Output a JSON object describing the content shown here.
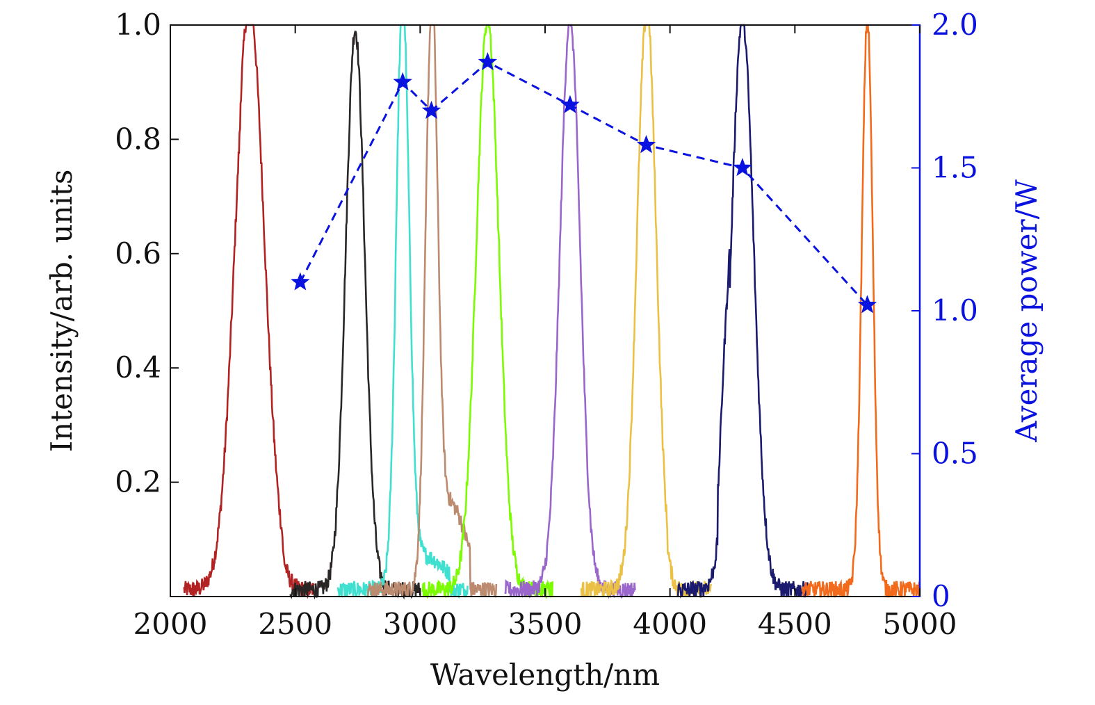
{
  "chart_data": {
    "type": "line",
    "title": "",
    "xlabel": "Wavelength/nm",
    "ylabel": "Intensity/arb. units",
    "y2label": "Average power/W",
    "xlim": [
      2000,
      5000
    ],
    "ylim": [
      0,
      1.0
    ],
    "y2lim": [
      0,
      2.0
    ],
    "x_ticks": [
      "2000",
      "2500",
      "3000",
      "3500",
      "4000",
      "4500",
      "5000"
    ],
    "y_ticks": [
      "0.2",
      "0.4",
      "0.6",
      "0.8",
      "1.0"
    ],
    "y2_ticks": [
      "0",
      "0.5",
      "1.0",
      "1.5",
      "2.0"
    ],
    "grid": false,
    "legend": "none",
    "spectra": [
      {
        "color": "#b22222",
        "center": 2315,
        "width": 58,
        "peak": 0.98,
        "tail": 0.06,
        "tail_start": 2280,
        "tail_end": 2450
      },
      {
        "color": "#2b2626",
        "center": 2740,
        "width": 38,
        "peak": 0.98,
        "tail": 0.0,
        "tail_start": 2660,
        "tail_end": 2830
      },
      {
        "color": "#40e0d0",
        "center": 2930,
        "width": 26,
        "peak": 1.0,
        "tail": 0.06,
        "tail_start": 2900,
        "tail_end": 3120
      },
      {
        "color": "#bc8a6e",
        "center": 3045,
        "width": 24,
        "peak": 1.0,
        "tail": 0.15,
        "tail_start": 3040,
        "tail_end": 3200
      },
      {
        "color": "#7cfc00",
        "center": 3270,
        "width": 45,
        "peak": 1.0,
        "tail": 0.0,
        "tail_start": 3200,
        "tail_end": 3350
      },
      {
        "color": "#9a66cc",
        "center": 3600,
        "width": 40,
        "peak": 1.0,
        "tail": 0.0,
        "tail_start": 3520,
        "tail_end": 3680
      },
      {
        "color": "#eac145",
        "center": 3905,
        "width": 38,
        "peak": 1.0,
        "tail": 0.05,
        "tail_start": 3900,
        "tail_end": 3990
      },
      {
        "color": "#1a1a6e",
        "center": 4290,
        "width": 45,
        "peak": 1.0,
        "tail": 0.15,
        "tail_start": 4190,
        "tail_end": 4240
      },
      {
        "color": "#f26b1d",
        "center": 4790,
        "width": 22,
        "peak": 1.0,
        "tail": 0.0,
        "tail_start": 4730,
        "tail_end": 4850
      }
    ],
    "power_series": {
      "color": "#0a12e0",
      "marker": "star",
      "line_style": "dashed",
      "axis": "right",
      "x": [
        2520,
        2930,
        3045,
        3270,
        3600,
        3905,
        4290,
        4790
      ],
      "y": [
        1.1,
        1.8,
        1.7,
        1.87,
        1.72,
        1.58,
        1.5,
        1.02
      ]
    }
  }
}
